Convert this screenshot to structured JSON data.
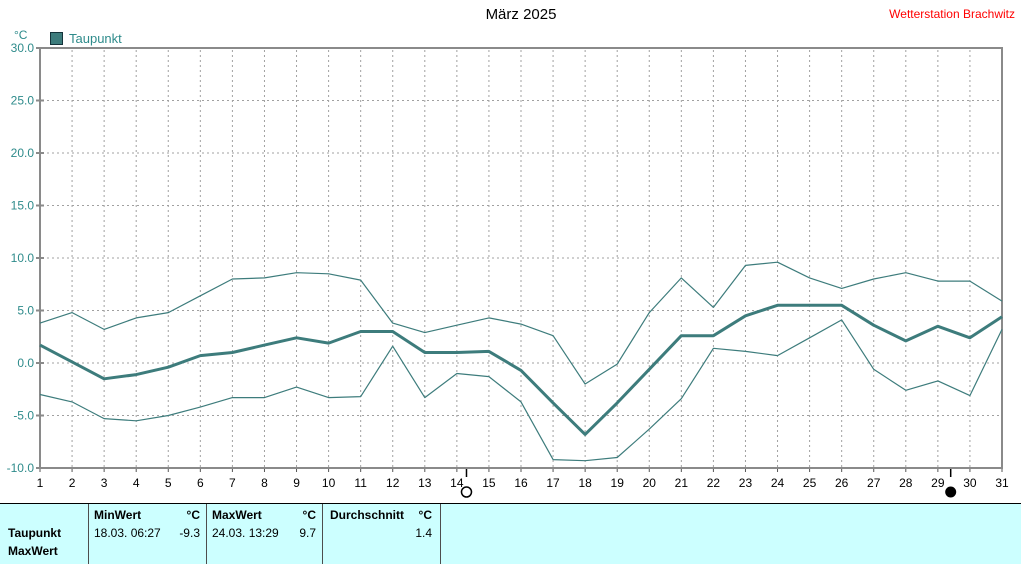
{
  "header": {
    "title": "März 2025",
    "station": "Wetterstation Brachwitz"
  },
  "chart_data": {
    "type": "line",
    "title": "März 2025",
    "xlabel": "",
    "ylabel": "°C",
    "ylim": [
      -10,
      30
    ],
    "ytick_step": 5,
    "grid": "dashed",
    "legend_position": "top-left",
    "legend": [
      {
        "label": "Taupunkt"
      }
    ],
    "x": [
      1,
      2,
      3,
      4,
      5,
      6,
      7,
      8,
      9,
      10,
      11,
      12,
      13,
      14,
      15,
      16,
      17,
      18,
      19,
      20,
      21,
      22,
      23,
      24,
      25,
      26,
      27,
      28,
      29,
      30,
      31
    ],
    "series": [
      {
        "name": "Taupunkt",
        "role": "daily-mean",
        "style": "thick",
        "values": [
          1.7,
          0.1,
          -1.5,
          -1.1,
          -0.4,
          0.7,
          1.0,
          1.7,
          2.4,
          1.9,
          3.0,
          3.0,
          1.0,
          1.0,
          1.1,
          -0.7,
          -3.8,
          -6.8,
          -3.8,
          -0.6,
          2.6,
          2.6,
          4.5,
          5.5,
          5.5,
          5.5,
          3.6,
          2.1,
          3.5,
          2.4,
          4.4
        ]
      },
      {
        "name": "Taupunkt",
        "role": "daily-max",
        "style": "thin",
        "values": [
          3.8,
          4.8,
          3.2,
          4.3,
          4.8,
          6.4,
          8.0,
          8.1,
          8.6,
          8.5,
          7.9,
          3.8,
          2.9,
          3.6,
          4.3,
          3.7,
          2.6,
          -2.0,
          -0.1,
          4.8,
          8.1,
          5.3,
          9.3,
          9.6,
          8.1,
          7.1,
          8.0,
          8.6,
          7.8,
          7.8,
          5.9
        ]
      },
      {
        "name": "Taupunkt",
        "role": "daily-min",
        "style": "thin",
        "values": [
          -3.0,
          -3.7,
          -5.3,
          -5.5,
          -5.0,
          -4.2,
          -3.3,
          -3.3,
          -2.3,
          -3.3,
          -3.2,
          1.6,
          -3.3,
          -1.0,
          -1.3,
          -3.7,
          -9.2,
          -9.3,
          -9.0,
          -6.3,
          -3.4,
          1.4,
          1.1,
          0.7,
          2.4,
          4.1,
          -0.6,
          -2.6,
          -1.7,
          -3.1,
          3.2
        ]
      }
    ],
    "annotations": {
      "moon_markers": [
        {
          "day": 14.3,
          "symbol": "open-circle"
        },
        {
          "day": 29.4,
          "symbol": "filled-circle"
        }
      ]
    }
  },
  "table": {
    "columns": [
      {
        "header": "MinWert",
        "unit": "°C"
      },
      {
        "header": "MaxWert",
        "unit": "°C"
      },
      {
        "header": "Durchschnitt",
        "unit": "°C"
      }
    ],
    "rows": [
      {
        "label": "Taupunkt",
        "min_datetime": "18.03.  06:27",
        "min_value": "-9.3",
        "max_datetime": "24.03.  13:29",
        "max_value": "9.7",
        "average": "1.4"
      },
      {
        "label": "MaxWert",
        "min_datetime": "",
        "min_value": "",
        "max_datetime": "",
        "max_value": "",
        "average": ""
      }
    ]
  },
  "colors": {
    "line": "#3d7c7c",
    "axis": "#8a8a8a",
    "grid": "#a0a0a0",
    "y_label": "#2e8b8b",
    "x_label": "#000000",
    "title": "#000000",
    "station": "#ff0000",
    "table_bg": "#ccffff"
  }
}
